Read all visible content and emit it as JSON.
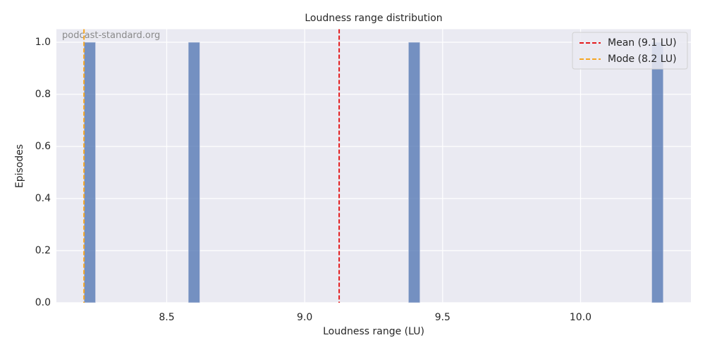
{
  "chart_data": {
    "type": "histogram",
    "title": "Loudness range distribution",
    "xlabel": "Loudness range (LU)",
    "ylabel": "Episodes",
    "annotation": "podcast-standard.org",
    "bins": [
      8.2,
      8.242,
      8.284,
      8.326,
      8.368,
      8.41,
      8.452,
      8.494,
      8.536,
      8.578,
      8.62,
      8.662,
      8.704,
      8.746,
      8.788,
      8.83,
      8.872,
      8.914,
      8.956,
      8.998,
      9.04,
      9.082,
      9.124,
      9.166,
      9.208,
      9.25,
      9.292,
      9.334,
      9.376,
      9.418,
      9.46,
      9.502,
      9.544,
      9.586,
      9.628,
      9.67,
      9.712,
      9.754,
      9.796,
      9.838,
      9.88,
      9.922,
      9.964,
      10.006,
      10.048,
      10.09,
      10.132,
      10.174,
      10.216,
      10.258,
      10.3
    ],
    "values": [
      1,
      0,
      0,
      0,
      0,
      0,
      0,
      0,
      0,
      1,
      0,
      0,
      0,
      0,
      0,
      0,
      0,
      0,
      0,
      0,
      0,
      0,
      0,
      0,
      0,
      0,
      0,
      0,
      1,
      0,
      0,
      0,
      0,
      0,
      0,
      0,
      0,
      0,
      0,
      0,
      0,
      0,
      0,
      0,
      0,
      0,
      0,
      0,
      0,
      1
    ],
    "color": "#4c72b0",
    "vlines": [
      {
        "name": "Mean (9.1 LU)",
        "value": 9.125,
        "color": "#e41a1c"
      },
      {
        "name": "Mode (8.2 LU)",
        "value": 8.2,
        "color": "#f5a623"
      }
    ],
    "xlim": [
      8.1,
      10.4
    ],
    "xticks": [
      8.5,
      {
        "value": 9,
        "label": "9.0"
      },
      9.5,
      {
        "value": 10,
        "label": "10.0"
      }
    ],
    "ylim": [
      0,
      1.05
    ],
    "yticks": [
      {
        "value": 0,
        "label": "0.0"
      },
      0.2,
      0.4,
      0.6,
      0.8,
      {
        "value": 1,
        "label": "1.0"
      }
    ],
    "grid": true,
    "legend": "upper right"
  }
}
